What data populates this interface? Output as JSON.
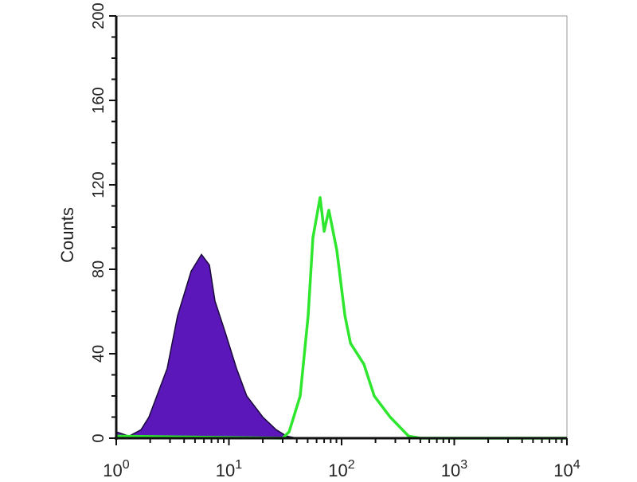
{
  "chart_data": {
    "type": "area",
    "title": "",
    "xlabel": "",
    "ylabel": "Counts",
    "xscale": "log",
    "xlim": [
      1,
      10000
    ],
    "ylim": [
      0,
      200
    ],
    "grid": false,
    "x_ticks": [
      {
        "base": "10",
        "exp": "0"
      },
      {
        "base": "10",
        "exp": "1"
      },
      {
        "base": "10",
        "exp": "2"
      },
      {
        "base": "10",
        "exp": "3"
      },
      {
        "base": "10",
        "exp": "4"
      }
    ],
    "y_ticks": [
      "0",
      "40",
      "80",
      "120",
      "160",
      "200"
    ],
    "y_tick_values": [
      0,
      40,
      80,
      120,
      160,
      200
    ],
    "series": [
      {
        "style": "filled",
        "color": "#5b17b9",
        "x": [
          1.0,
          1.3,
          1.66,
          1.95,
          2.83,
          3.5,
          4.62,
          5.7,
          6.71,
          7.52,
          9.29,
          11.7,
          14.4,
          20.0,
          26.3,
          32.5,
          40
        ],
        "y": [
          3,
          1,
          4,
          10,
          33,
          58,
          79,
          87,
          82,
          65,
          50,
          33,
          20,
          10,
          4,
          1,
          0
        ]
      },
      {
        "style": "line",
        "color": "#2fe62f",
        "x": [
          1.0,
          30,
          34.2,
          42.9,
          50.5,
          55.7,
          64.4,
          70.0,
          77.1,
          90.7,
          107,
          120,
          158,
          195,
          270,
          393,
          500,
          10000
        ],
        "y": [
          1,
          0,
          3,
          20,
          58,
          95,
          114,
          98,
          108,
          89,
          58,
          45,
          35,
          20,
          10,
          1,
          0,
          0
        ]
      }
    ]
  }
}
